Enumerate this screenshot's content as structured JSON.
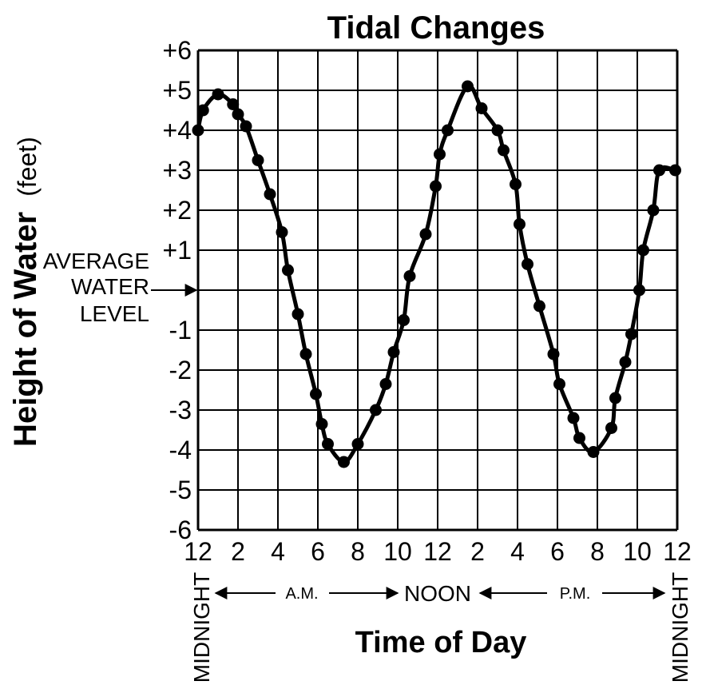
{
  "chart_data": {
    "type": "line",
    "title": "Tidal Changes",
    "xlabel": "Time of Day",
    "ylabel": "Height of Water",
    "ylabel_unit": "(feet)",
    "xlim": [
      0,
      24
    ],
    "ylim": [
      -6,
      6
    ],
    "grid": true,
    "x_tick_labels": [
      "12",
      "2",
      "4",
      "6",
      "8",
      "10",
      "12",
      "2",
      "4",
      "6",
      "8",
      "10",
      "12"
    ],
    "y_tick_labels": [
      "+6",
      "+5",
      "+4",
      "+3",
      "+2",
      "+1",
      "",
      "-1",
      "-2",
      "-3",
      "-4",
      "-5",
      "-6"
    ],
    "annotations": {
      "average_line1": "AVERAGE",
      "average_line2": "WATER",
      "average_line3": "LEVEL",
      "midnight_left": "MIDNIGHT",
      "midnight_right": "MIDNIGHT",
      "am": "A.M.",
      "noon": "NOON",
      "pm": "P.M."
    },
    "series": [
      {
        "x": [
          0,
          0.25,
          1,
          1.75,
          2,
          2.4,
          3,
          3.6,
          4.2,
          4.5,
          5,
          5.4,
          5.9,
          6.2,
          6.5,
          7.3,
          8,
          8.9,
          9.4,
          9.8,
          10.3,
          10.6,
          11.4,
          11.9,
          12.1,
          12.5,
          13.5,
          14.2,
          15,
          15.3,
          15.9,
          16.1,
          16.5,
          17.1,
          17.8,
          18.1,
          18.8,
          19.1,
          19.8,
          20.7,
          20.9,
          21.4,
          21.7,
          22.1,
          22.3,
          22.8,
          23.1,
          23.9
        ],
        "y": [
          4.0,
          4.5,
          4.9,
          4.65,
          4.4,
          4.1,
          3.25,
          2.4,
          1.45,
          0.5,
          -0.6,
          -1.6,
          -2.6,
          -3.35,
          -3.85,
          -4.3,
          -3.85,
          -3.0,
          -2.35,
          -1.55,
          -0.75,
          0.35,
          1.4,
          2.6,
          3.4,
          4.0,
          5.1,
          4.55,
          4.0,
          3.5,
          2.65,
          1.65,
          0.65,
          -0.4,
          -1.6,
          -2.35,
          -3.2,
          -3.7,
          -4.05,
          -3.45,
          -2.7,
          -1.8,
          -1.1,
          0.0,
          1.0,
          2.0,
          3.0,
          3.0
        ]
      }
    ]
  }
}
